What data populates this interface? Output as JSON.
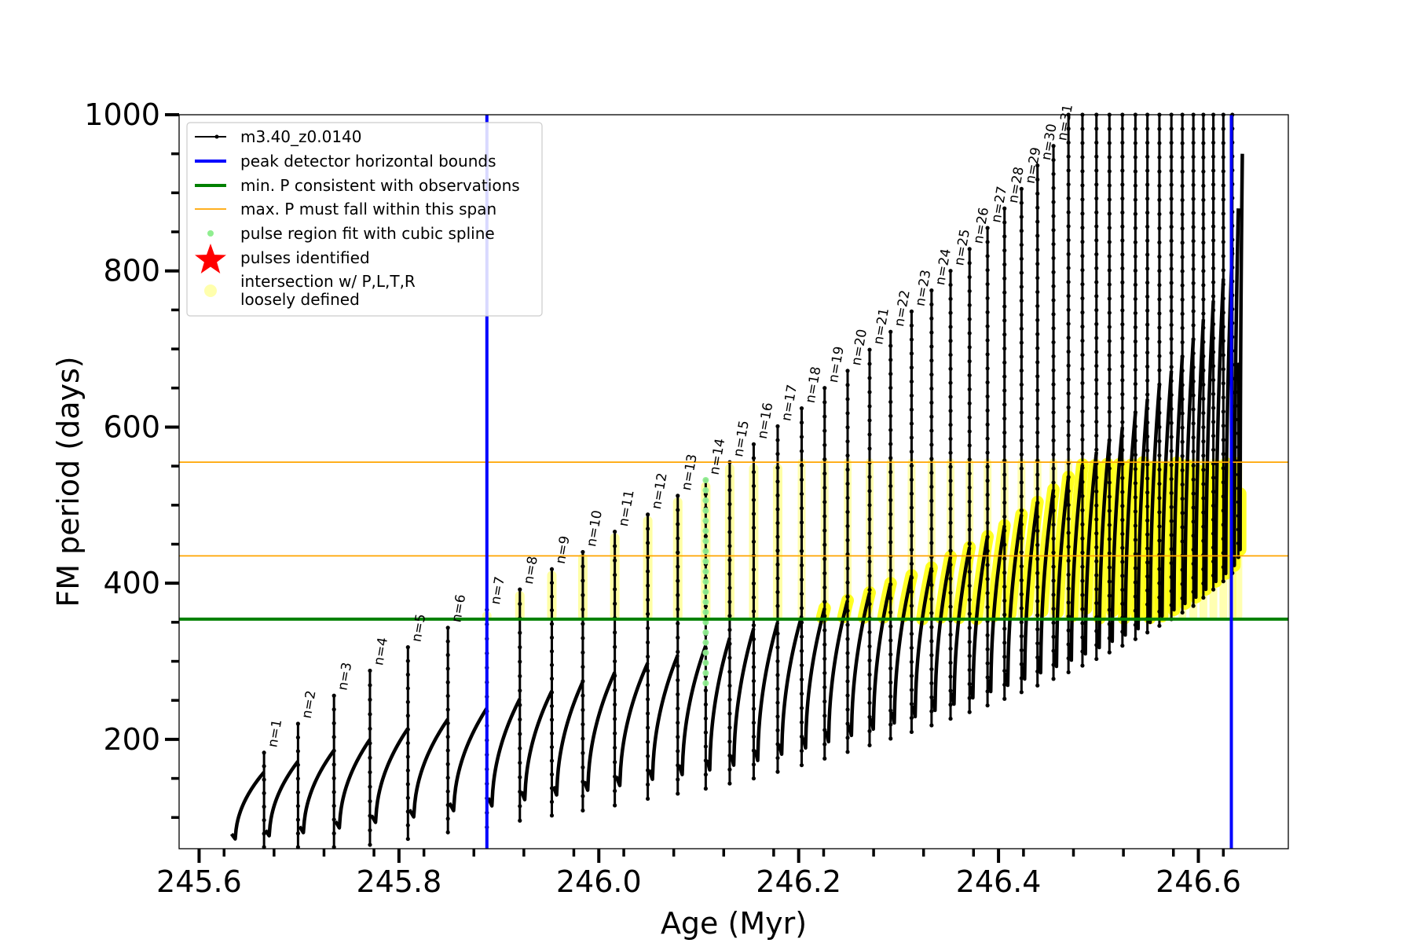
{
  "chart_data": {
    "type": "line",
    "xlabel": "Age (Myr)",
    "ylabel": "FM period (days)",
    "xlim": [
      245.58,
      246.69
    ],
    "ylim": [
      60,
      1000
    ],
    "x_ticks": [
      245.6,
      245.8,
      246.0,
      246.2,
      246.4,
      246.6
    ],
    "x_tick_labels": [
      "245.6",
      "245.8",
      "246.0",
      "246.2",
      "246.4",
      "246.6"
    ],
    "y_ticks": [
      200,
      400,
      600,
      800,
      1000
    ],
    "y_tick_labels": [
      "200",
      "400",
      "600",
      "800",
      "1000"
    ],
    "legend_position": "top-left",
    "legend": [
      {
        "label": "m3.40_z0.0140",
        "style": "line-dot",
        "color": "#000000"
      },
      {
        "label": "peak detector horizontal bounds",
        "style": "line",
        "color": "#0000ff"
      },
      {
        "label": "min. P consistent with observations",
        "style": "line",
        "color": "#008000"
      },
      {
        "label": "max. P must fall within this span",
        "style": "thin-line",
        "color": "#ffa500"
      },
      {
        "label": "pulse region fit with cubic spline",
        "style": "dot",
        "color": "#90ee90"
      },
      {
        "label": "pulses identified",
        "style": "star",
        "color": "#ff0000"
      },
      {
        "label": "intersection w/ P,L,T,R\nloosely defined",
        "style": "circle",
        "color": "#ffff99"
      }
    ],
    "reference_lines": {
      "peak_detector_bounds_x": [
        245.888,
        246.633
      ],
      "min_period": 354,
      "max_period_span": [
        435,
        555
      ]
    },
    "spline_pulse_n": 14,
    "series": [
      {
        "name": "m3.40_z0.0140",
        "color": "#000000",
        "pulses": [
          {
            "n": 0,
            "t0": 245.631,
            "min": 72,
            "end": 158,
            "peak": 120
          },
          {
            "n": 1,
            "t0": 245.665,
            "min": 76,
            "end": 172,
            "peak": 183
          },
          {
            "n": 2,
            "t0": 245.699,
            "min": 80,
            "end": 186,
            "peak": 220
          },
          {
            "n": 3,
            "t0": 245.735,
            "min": 86,
            "end": 200,
            "peak": 256
          },
          {
            "n": 4,
            "t0": 245.771,
            "min": 93,
            "end": 214,
            "peak": 288
          },
          {
            "n": 5,
            "t0": 245.809,
            "min": 100,
            "end": 226,
            "peak": 318
          },
          {
            "n": 6,
            "t0": 245.849,
            "min": 108,
            "end": 240,
            "peak": 343
          },
          {
            "n": 7,
            "t0": 245.888,
            "min": 114,
            "end": 252,
            "peak": 366
          },
          {
            "n": 8,
            "t0": 245.921,
            "min": 122,
            "end": 262,
            "peak": 392
          },
          {
            "n": 9,
            "t0": 245.953,
            "min": 128,
            "end": 274,
            "peak": 418
          },
          {
            "n": 10,
            "t0": 245.984,
            "min": 134,
            "end": 286,
            "peak": 440
          },
          {
            "n": 11,
            "t0": 246.016,
            "min": 140,
            "end": 298,
            "peak": 466
          },
          {
            "n": 12,
            "t0": 246.049,
            "min": 148,
            "end": 308,
            "peak": 488
          },
          {
            "n": 13,
            "t0": 246.079,
            "min": 154,
            "end": 320,
            "peak": 512
          },
          {
            "n": 14,
            "t0": 246.107,
            "min": 160,
            "end": 330,
            "peak": 532
          },
          {
            "n": 15,
            "t0": 246.131,
            "min": 166,
            "end": 342,
            "peak": 555
          },
          {
            "n": 16,
            "t0": 246.155,
            "min": 172,
            "end": 350,
            "peak": 578
          },
          {
            "n": 17,
            "t0": 246.179,
            "min": 180,
            "end": 358,
            "peak": 601
          },
          {
            "n": 18,
            "t0": 246.203,
            "min": 188,
            "end": 368,
            "peak": 624
          },
          {
            "n": 19,
            "t0": 246.226,
            "min": 196,
            "end": 378,
            "peak": 650
          },
          {
            "n": 20,
            "t0": 246.249,
            "min": 204,
            "end": 388,
            "peak": 672
          },
          {
            "n": 21,
            "t0": 246.271,
            "min": 212,
            "end": 400,
            "peak": 699
          },
          {
            "n": 22,
            "t0": 246.292,
            "min": 220,
            "end": 410,
            "peak": 722
          },
          {
            "n": 23,
            "t0": 246.313,
            "min": 228,
            "end": 420,
            "peak": 748
          },
          {
            "n": 24,
            "t0": 246.333,
            "min": 236,
            "end": 434,
            "peak": 775
          },
          {
            "n": 25,
            "t0": 246.352,
            "min": 244,
            "end": 446,
            "peak": 800
          },
          {
            "n": 26,
            "t0": 246.371,
            "min": 252,
            "end": 460,
            "peak": 828
          },
          {
            "n": 27,
            "t0": 246.389,
            "min": 260,
            "end": 474,
            "peak": 855
          },
          {
            "n": 28,
            "t0": 246.406,
            "min": 268,
            "end": 488,
            "peak": 880
          },
          {
            "n": 29,
            "t0": 246.423,
            "min": 276,
            "end": 504,
            "peak": 905
          },
          {
            "n": 30,
            "t0": 246.439,
            "min": 284,
            "end": 520,
            "peak": 935
          },
          {
            "n": 31,
            "t0": 246.455,
            "min": 292,
            "end": 536,
            "peak": 960
          },
          {
            "n": 32,
            "t0": 246.47,
            "min": 300,
            "end": 552,
            "peak": 1000
          },
          {
            "n": 33,
            "t0": 246.484,
            "min": 308,
            "end": 568,
            "peak": 1000
          },
          {
            "n": 34,
            "t0": 246.498,
            "min": 316,
            "end": 584,
            "peak": 1000
          },
          {
            "n": 35,
            "t0": 246.511,
            "min": 324,
            "end": 600,
            "peak": 1000
          },
          {
            "n": 36,
            "t0": 246.524,
            "min": 332,
            "end": 618,
            "peak": 1000
          },
          {
            "n": 37,
            "t0": 246.537,
            "min": 340,
            "end": 636,
            "peak": 1000
          },
          {
            "n": 38,
            "t0": 246.549,
            "min": 348,
            "end": 654,
            "peak": 1000
          },
          {
            "n": 39,
            "t0": 246.561,
            "min": 356,
            "end": 672,
            "peak": 1000
          },
          {
            "n": 40,
            "t0": 246.573,
            "min": 364,
            "end": 692,
            "peak": 1000
          },
          {
            "n": 41,
            "t0": 246.584,
            "min": 372,
            "end": 714,
            "peak": 1000
          },
          {
            "n": 42,
            "t0": 246.595,
            "min": 380,
            "end": 738,
            "peak": 1000
          },
          {
            "n": 43,
            "t0": 246.605,
            "min": 390,
            "end": 762,
            "peak": 1000
          },
          {
            "n": 44,
            "t0": 246.615,
            "min": 400,
            "end": 790,
            "peak": 1000
          },
          {
            "n": 45,
            "t0": 246.625,
            "min": 410,
            "end": 830,
            "peak": 1000
          },
          {
            "n": 46,
            "t0": 246.634,
            "min": 420,
            "end": 880,
            "peak": 1000
          },
          {
            "n": 47,
            "t0": 246.64,
            "min": 440,
            "end": 950,
            "peak": 680
          }
        ]
      }
    ],
    "pulse_labels": [
      {
        "n": 1,
        "text": "n=1"
      },
      {
        "n": 2,
        "text": "n=2"
      },
      {
        "n": 3,
        "text": "n=3"
      },
      {
        "n": 4,
        "text": "n=4"
      },
      {
        "n": 5,
        "text": "n=5"
      },
      {
        "n": 6,
        "text": "n=6"
      },
      {
        "n": 7,
        "text": "n=7"
      },
      {
        "n": 8,
        "text": "n=8"
      },
      {
        "n": 9,
        "text": "n=9"
      },
      {
        "n": 10,
        "text": "n=10"
      },
      {
        "n": 11,
        "text": "n=11"
      },
      {
        "n": 12,
        "text": "n=12"
      },
      {
        "n": 13,
        "text": "n=13"
      },
      {
        "n": 14,
        "text": "n=14"
      },
      {
        "n": 15,
        "text": "n=15"
      },
      {
        "n": 16,
        "text": "n=16"
      },
      {
        "n": 17,
        "text": "n=17"
      },
      {
        "n": 18,
        "text": "n=18"
      },
      {
        "n": 19,
        "text": "n=19"
      },
      {
        "n": 20,
        "text": "n=20"
      },
      {
        "n": 21,
        "text": "n=21"
      },
      {
        "n": 22,
        "text": "n=22"
      },
      {
        "n": 23,
        "text": "n=23"
      },
      {
        "n": 24,
        "text": "n=24"
      },
      {
        "n": 25,
        "text": "n=25"
      },
      {
        "n": 26,
        "text": "n=26"
      },
      {
        "n": 27,
        "text": "n=27"
      },
      {
        "n": 28,
        "text": "n=28"
      },
      {
        "n": 29,
        "text": "n=29"
      },
      {
        "n": 30,
        "text": "n=30"
      },
      {
        "n": 31,
        "text": "n=31"
      }
    ]
  }
}
